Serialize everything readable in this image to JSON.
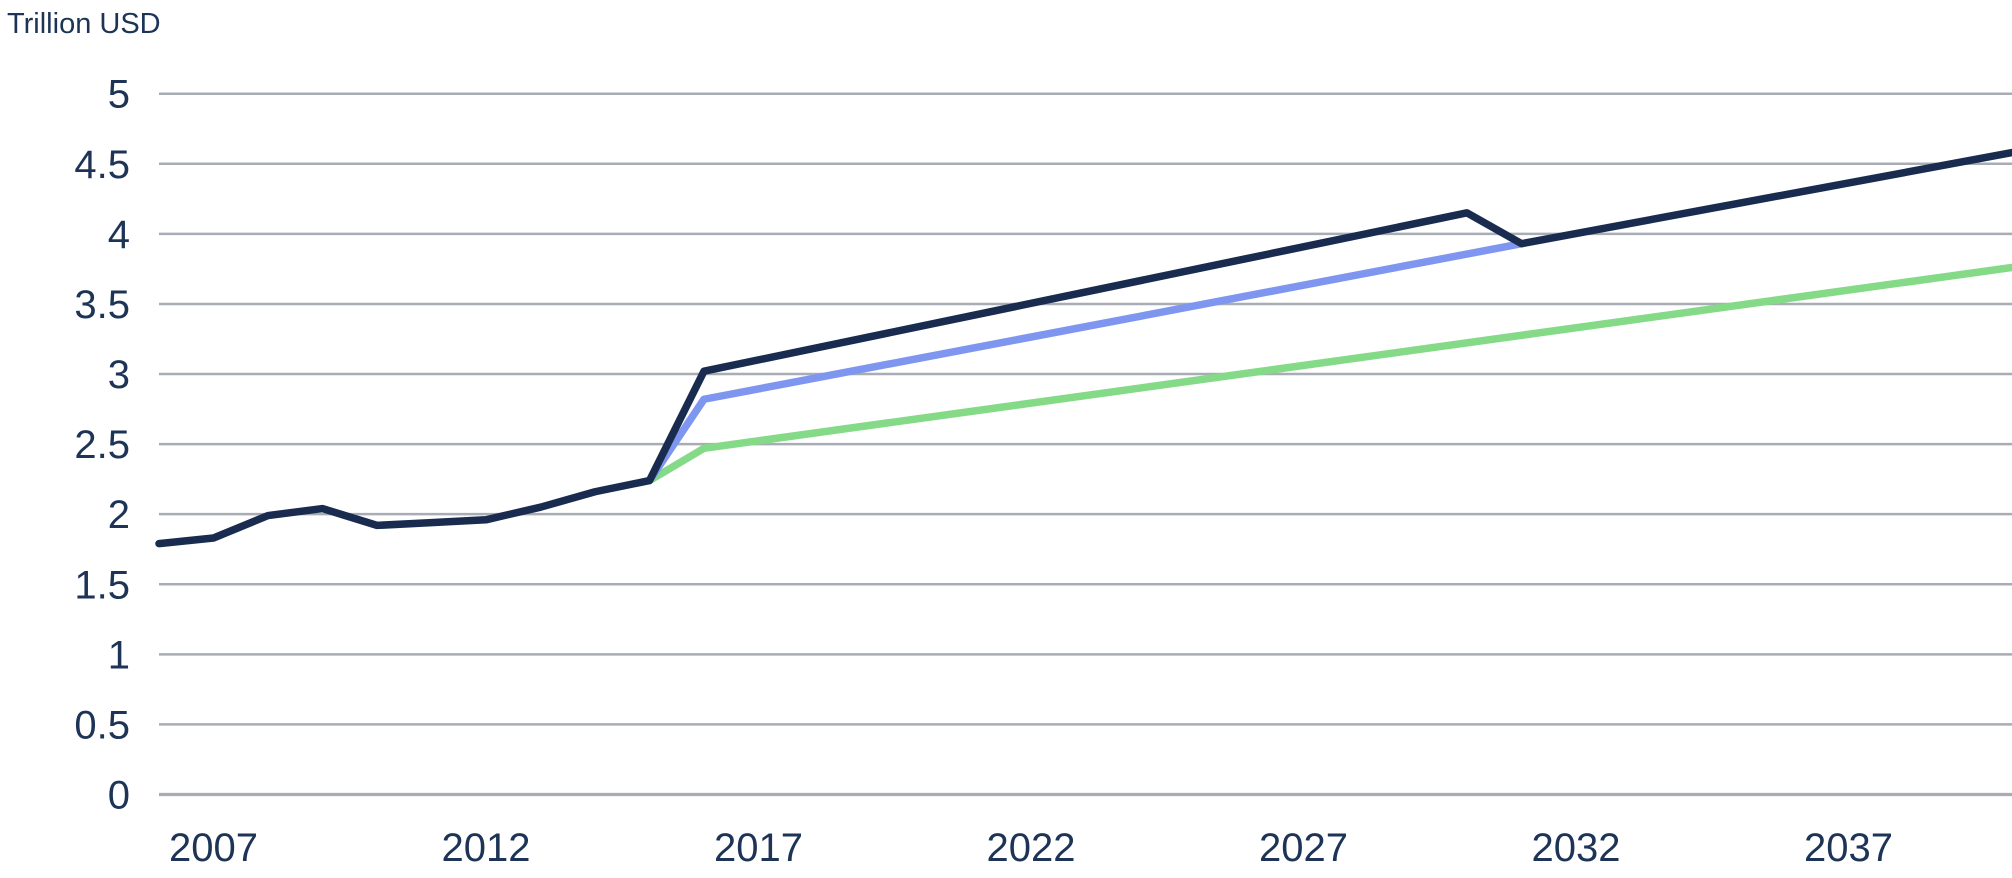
{
  "chart_data": {
    "type": "line",
    "y_axis_title": "Trillion USD",
    "xlim": [
      2006,
      2040
    ],
    "ylim": [
      0,
      5
    ],
    "x_ticks": [
      2007,
      2012,
      2017,
      2022,
      2027,
      2032,
      2037
    ],
    "y_ticks": [
      0,
      0.5,
      1,
      1.5,
      2,
      2.5,
      3,
      3.5,
      4,
      4.5,
      5
    ],
    "grid": "horizontal-only",
    "legend": "none",
    "colors": {
      "text": "#1d3457",
      "gridline": "#a8acb5",
      "background": "#ffffff"
    },
    "series": [
      {
        "name": "green-projection-line",
        "color": "#84da86",
        "points": [
          [
            2015,
            2.24
          ],
          [
            2016,
            2.47
          ],
          [
            2040,
            3.76
          ]
        ]
      },
      {
        "name": "blue-projection-line",
        "color": "#7e96f0",
        "points": [
          [
            2015,
            2.24
          ],
          [
            2016,
            2.82
          ],
          [
            2031,
            3.93
          ]
        ]
      },
      {
        "name": "navy-history-and-projection-line",
        "color": "#192c50",
        "points": [
          [
            2006,
            1.79
          ],
          [
            2007,
            1.83
          ],
          [
            2008,
            1.99
          ],
          [
            2009,
            2.04
          ],
          [
            2010,
            1.92
          ],
          [
            2011,
            1.94
          ],
          [
            2012,
            1.96
          ],
          [
            2013,
            2.05
          ],
          [
            2014,
            2.16
          ],
          [
            2015,
            2.24
          ],
          [
            2016,
            3.02
          ],
          [
            2030,
            4.15
          ],
          [
            2031,
            3.93
          ],
          [
            2040,
            4.58
          ]
        ]
      }
    ]
  }
}
